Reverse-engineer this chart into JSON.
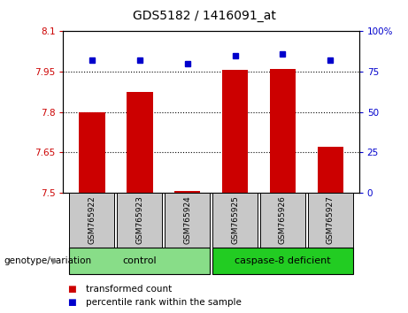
{
  "title": "GDS5182 / 1416091_at",
  "samples": [
    "GSM765922",
    "GSM765923",
    "GSM765924",
    "GSM765925",
    "GSM765926",
    "GSM765927"
  ],
  "bar_values": [
    7.8,
    7.875,
    7.505,
    7.955,
    7.96,
    7.67
  ],
  "percentile_values": [
    82,
    82,
    80,
    85,
    86,
    82
  ],
  "ylim_left": [
    7.5,
    8.1
  ],
  "ylim_right": [
    0,
    100
  ],
  "yticks_left": [
    7.5,
    7.65,
    7.8,
    7.95,
    8.1
  ],
  "ytick_labels_left": [
    "7.5",
    "7.65",
    "7.8",
    "7.95",
    "8.1"
  ],
  "yticks_right": [
    0,
    25,
    50,
    75,
    100
  ],
  "ytick_labels_right": [
    "0",
    "25",
    "50",
    "75",
    "100%"
  ],
  "hlines": [
    7.65,
    7.8,
    7.95
  ],
  "bar_color": "#cc0000",
  "percentile_color": "#0000cc",
  "bar_width": 0.55,
  "groups": [
    {
      "label": "control",
      "indices": [
        0,
        1,
        2
      ],
      "color": "#88dd88"
    },
    {
      "label": "caspase-8 deficient",
      "indices": [
        3,
        4,
        5
      ],
      "color": "#22cc22"
    }
  ],
  "group_row_label": "genotype/variation",
  "legend_items": [
    {
      "label": "transformed count",
      "color": "#cc0000"
    },
    {
      "label": "percentile rank within the sample",
      "color": "#0000cc"
    }
  ],
  "bg_color": "#ffffff",
  "plot_bg": "#ffffff",
  "tick_box_color": "#c8c8c8"
}
